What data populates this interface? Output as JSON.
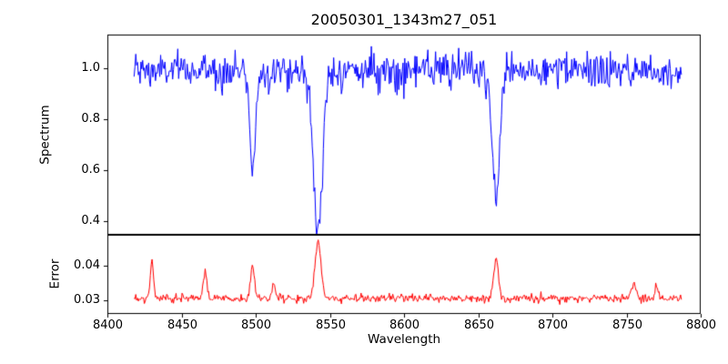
{
  "figure": {
    "title": "20050301_1343m27_051",
    "xlabel": "Wavelength",
    "background": "#ffffff",
    "axes_color": "#000000"
  },
  "chart_data": [
    {
      "type": "line",
      "name": "spectrum",
      "title": "20050301_1343m27_051",
      "xlabel": "Wavelength",
      "ylabel": "Spectrum",
      "color": "#0000ff",
      "grid": false,
      "legend": "none",
      "xlim": [
        8400,
        8800
      ],
      "ylim": [
        0.346,
        1.132
      ],
      "xticks": [
        8400,
        8450,
        8500,
        8550,
        8600,
        8650,
        8700,
        8750,
        8800
      ],
      "yticks": [
        0.4,
        0.6,
        0.8,
        1.0
      ],
      "x_start": 8418,
      "x_end": 8787,
      "n_points": 640,
      "baseline": 0.99,
      "noise_std": 0.035,
      "absorption_lines": [
        {
          "center": 8498,
          "min_value": 0.62,
          "sigma": 2.0
        },
        {
          "center": 8542,
          "min_value": 0.38,
          "sigma": 3.2
        },
        {
          "center": 8662,
          "min_value": 0.46,
          "sigma": 2.4
        }
      ]
    },
    {
      "type": "line",
      "name": "error",
      "ylabel": "Error",
      "color": "#ff0000",
      "grid": false,
      "legend": "none",
      "xlim": [
        8400,
        8800
      ],
      "ylim": [
        0.026,
        0.049
      ],
      "yticks": [
        0.03,
        0.04
      ],
      "x_start": 8418,
      "x_end": 8787,
      "n_points": 640,
      "baseline": 0.0305,
      "noise_std": 0.0006,
      "emission_peaks": [
        {
          "center": 8430,
          "peak_value": 0.041,
          "sigma": 1.2
        },
        {
          "center": 8466,
          "peak_value": 0.038,
          "sigma": 1.2
        },
        {
          "center": 8498,
          "peak_value": 0.04,
          "sigma": 1.3
        },
        {
          "center": 8512,
          "peak_value": 0.0345,
          "sigma": 1.2
        },
        {
          "center": 8542,
          "peak_value": 0.047,
          "sigma": 2.0
        },
        {
          "center": 8662,
          "peak_value": 0.0425,
          "sigma": 1.6
        },
        {
          "center": 8755,
          "peak_value": 0.035,
          "sigma": 1.5
        },
        {
          "center": 8770,
          "peak_value": 0.034,
          "sigma": 1.2
        }
      ]
    }
  ]
}
